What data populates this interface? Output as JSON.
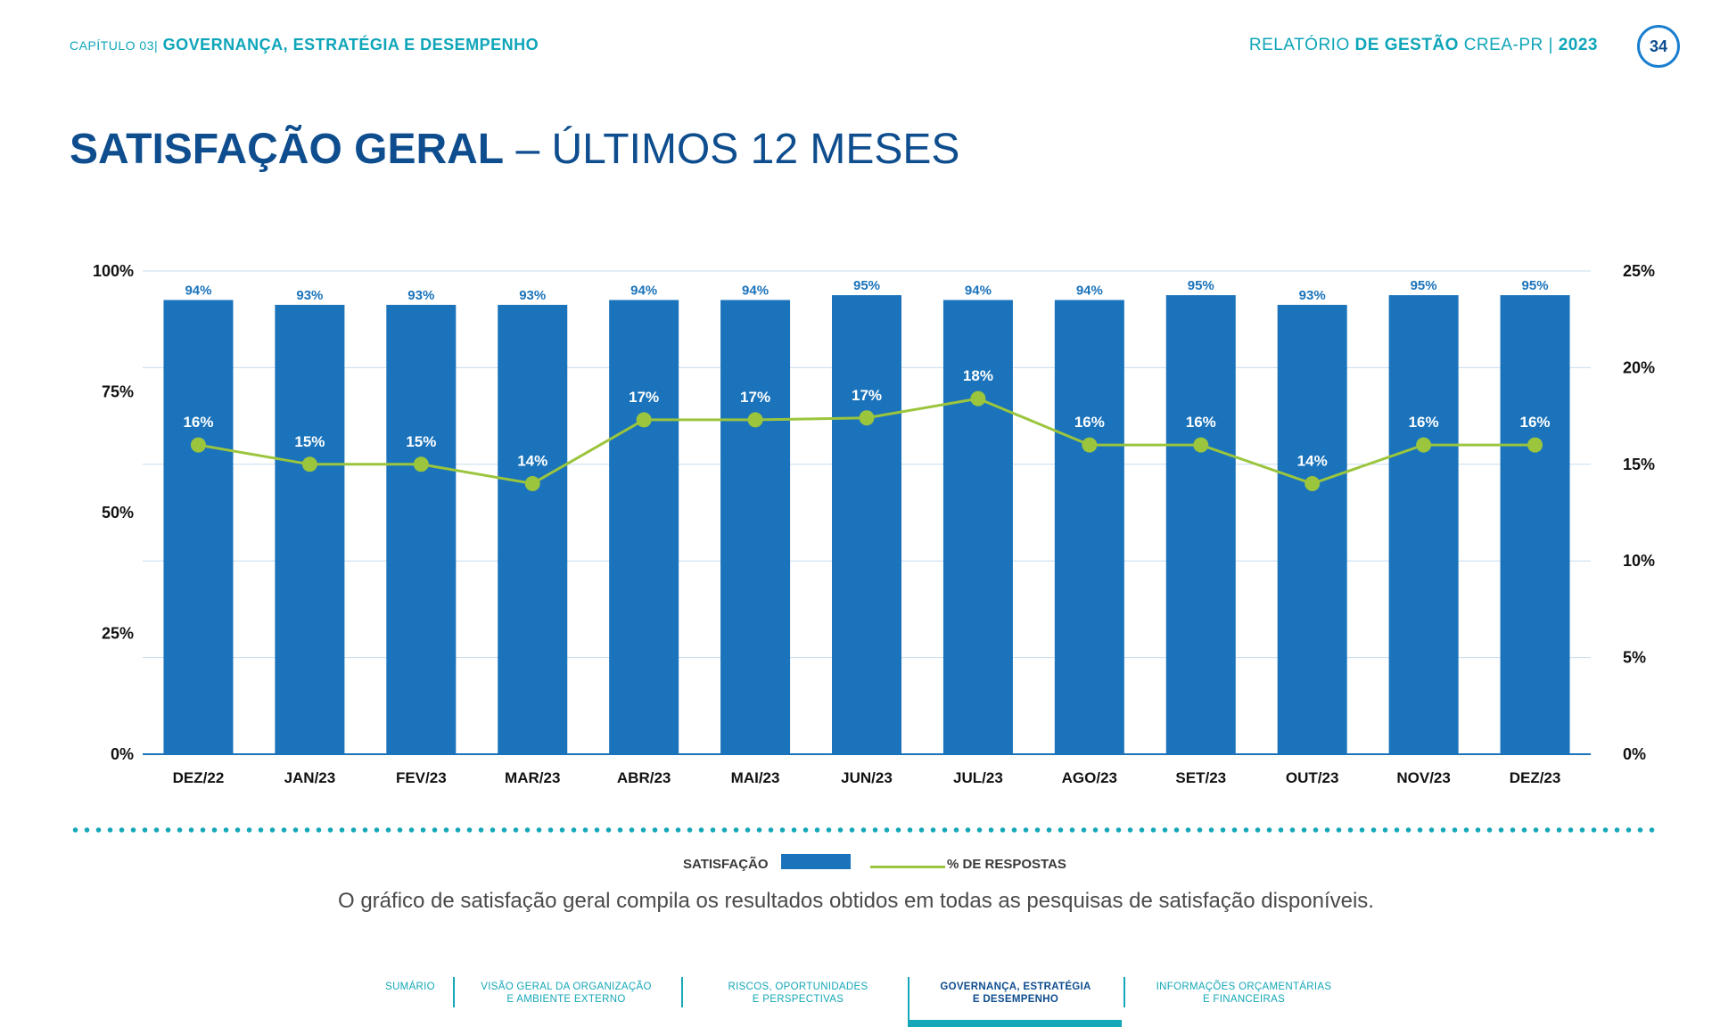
{
  "header": {
    "chapter": "CAPÍTULO 03|",
    "section": "GOVERNANÇA, ESTRATÉGIA E DESEMPENHO",
    "report_prefix": "RELATÓRIO",
    "report_bold": "DE GESTÃO",
    "report_suffix": "CREA-PR |",
    "year": "2023",
    "page_number": "34"
  },
  "title": {
    "bold": "SATISFAÇÃO GERAL",
    "light": " – ÚLTIMOS 12 MESES"
  },
  "chart_data": {
    "type": "bar",
    "categories": [
      "DEZ/22",
      "JAN/23",
      "FEV/23",
      "MAR/23",
      "ABR/23",
      "MAI/23",
      "JUN/23",
      "JUL/23",
      "AGO/23",
      "SET/23",
      "OUT/23",
      "NOV/23",
      "DEZ/23"
    ],
    "series": [
      {
        "name": "SATISFAÇÃO",
        "type": "bar",
        "axis": "left",
        "values": [
          94,
          93,
          93,
          93,
          94,
          94,
          95,
          94,
          94,
          95,
          93,
          95,
          95
        ],
        "labels": [
          "94%",
          "93%",
          "93%",
          "93%",
          "94%",
          "94%",
          "95%",
          "94%",
          "94%",
          "95%",
          "93%",
          "95%",
          "95%"
        ]
      },
      {
        "name": "% DE RESPOSTAS",
        "type": "line",
        "axis": "right",
        "values": [
          16,
          15,
          15,
          14,
          17.3,
          17.3,
          17.4,
          18.4,
          16,
          16,
          14,
          16,
          16
        ],
        "labels": [
          "16%",
          "15%",
          "15%",
          "14%",
          "17%",
          "17%",
          "17%",
          "18%",
          "16%",
          "16%",
          "14%",
          "16%",
          "16%"
        ]
      }
    ],
    "left_axis": {
      "ticks": [
        "0%",
        "25%",
        "50%",
        "75%",
        "100%"
      ],
      "range": [
        0,
        100
      ]
    },
    "right_axis": {
      "ticks": [
        "0%",
        "5%",
        "10%",
        "15%",
        "20%",
        "25%"
      ],
      "range": [
        0,
        25
      ]
    },
    "grid": true,
    "colors": {
      "bar": "#1a73bb",
      "line": "#9bc53d",
      "grid": "#c6dcef",
      "axis": "#1a73bb"
    }
  },
  "legend": {
    "bar_label": "SATISFAÇÃO",
    "line_label": "% DE RESPOSTAS"
  },
  "caption": "O gráfico de satisfação geral compila os resultados obtidos em todas as pesquisas de satisfação disponíveis.",
  "footer_nav": [
    {
      "line1": "SUMÁRIO",
      "line2": ""
    },
    {
      "line1": "VISÃO GERAL DA ORGANIZAÇÃO",
      "line2": "E AMBIENTE EXTERNO"
    },
    {
      "line1": "RISCOS, OPORTUNIDADES",
      "line2": "E PERSPECTIVAS"
    },
    {
      "line1": "GOVERNANÇA, ESTRATÉGIA",
      "line2": "E DESEMPENHO"
    },
    {
      "line1": "INFORMAÇÕES ORÇAMENTÁRIAS",
      "line2": "E FINANCEIRAS"
    }
  ]
}
